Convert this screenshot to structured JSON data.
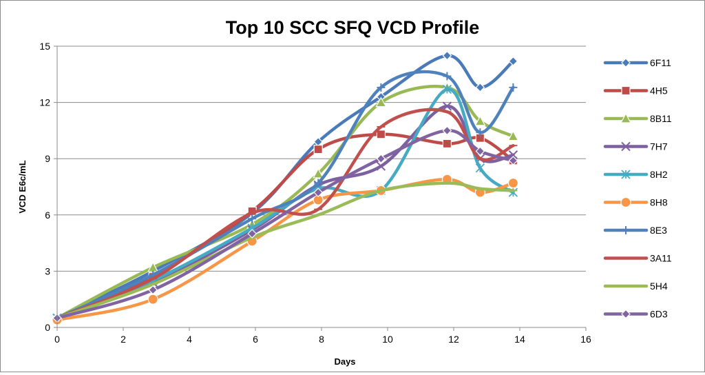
{
  "chart_data": {
    "type": "line",
    "title": "Top 10 SCC SFQ VCD Profile",
    "xlabel": "Days",
    "ylabel": "VCD E6c/mL",
    "xlim": [
      0,
      16
    ],
    "ylim": [
      0,
      15
    ],
    "x_ticks": [
      "0",
      "2",
      "4",
      "6",
      "8",
      "10",
      "12",
      "14",
      "16"
    ],
    "y_ticks": [
      "0",
      "3",
      "6",
      "9",
      "12",
      "15"
    ],
    "grid": "horizontal",
    "legend_position": "right",
    "smoothed": true,
    "x": [
      0,
      2.9,
      5.9,
      7.9,
      9.8,
      11.8,
      12.8,
      13.8
    ],
    "series": [
      {
        "name": "6F11",
        "color": "#4a7ab8",
        "marker": "diamond",
        "values": [
          0.5,
          3.0,
          6.1,
          9.9,
          12.3,
          14.5,
          12.8,
          14.2
        ]
      },
      {
        "name": "4H5",
        "color": "#be4b48",
        "marker": "square",
        "values": [
          0.4,
          2.7,
          6.2,
          9.5,
          10.3,
          9.8,
          10.1,
          8.9
        ]
      },
      {
        "name": "8B11",
        "color": "#98b954",
        "marker": "triangle",
        "values": [
          0.5,
          3.2,
          5.5,
          8.2,
          12.0,
          12.8,
          11.0,
          10.2
        ]
      },
      {
        "name": "7H7",
        "color": "#7d60a0",
        "marker": "x",
        "values": [
          0.5,
          2.4,
          5.2,
          7.6,
          8.6,
          11.8,
          9.0,
          9.2
        ]
      },
      {
        "name": "8H2",
        "color": "#46aac5",
        "marker": "asterisk",
        "values": [
          0.5,
          2.5,
          5.3,
          7.4,
          7.3,
          12.7,
          8.5,
          7.2
        ]
      },
      {
        "name": "8H8",
        "color": "#f79646",
        "marker": "circle",
        "values": [
          0.4,
          1.5,
          4.6,
          6.8,
          7.3,
          7.9,
          7.2,
          7.7
        ]
      },
      {
        "name": "8E3",
        "color": "#4f81bd",
        "marker": "plus",
        "values": [
          0.5,
          2.8,
          5.8,
          7.7,
          12.8,
          13.4,
          10.4,
          12.8
        ]
      },
      {
        "name": "3A11",
        "color": "#c0504d",
        "marker": "dash",
        "values": [
          0.5,
          2.6,
          6.1,
          6.3,
          10.7,
          11.5,
          9.0,
          9.7
        ]
      },
      {
        "name": "5H4",
        "color": "#9bbb59",
        "marker": "dash",
        "values": [
          0.5,
          2.3,
          4.8,
          6.0,
          7.3,
          7.7,
          7.4,
          7.3
        ]
      },
      {
        "name": "6D3",
        "color": "#8064a2",
        "marker": "diamond",
        "values": [
          0.5,
          2.0,
          5.0,
          7.2,
          9.0,
          10.5,
          9.4,
          8.9
        ]
      }
    ]
  }
}
